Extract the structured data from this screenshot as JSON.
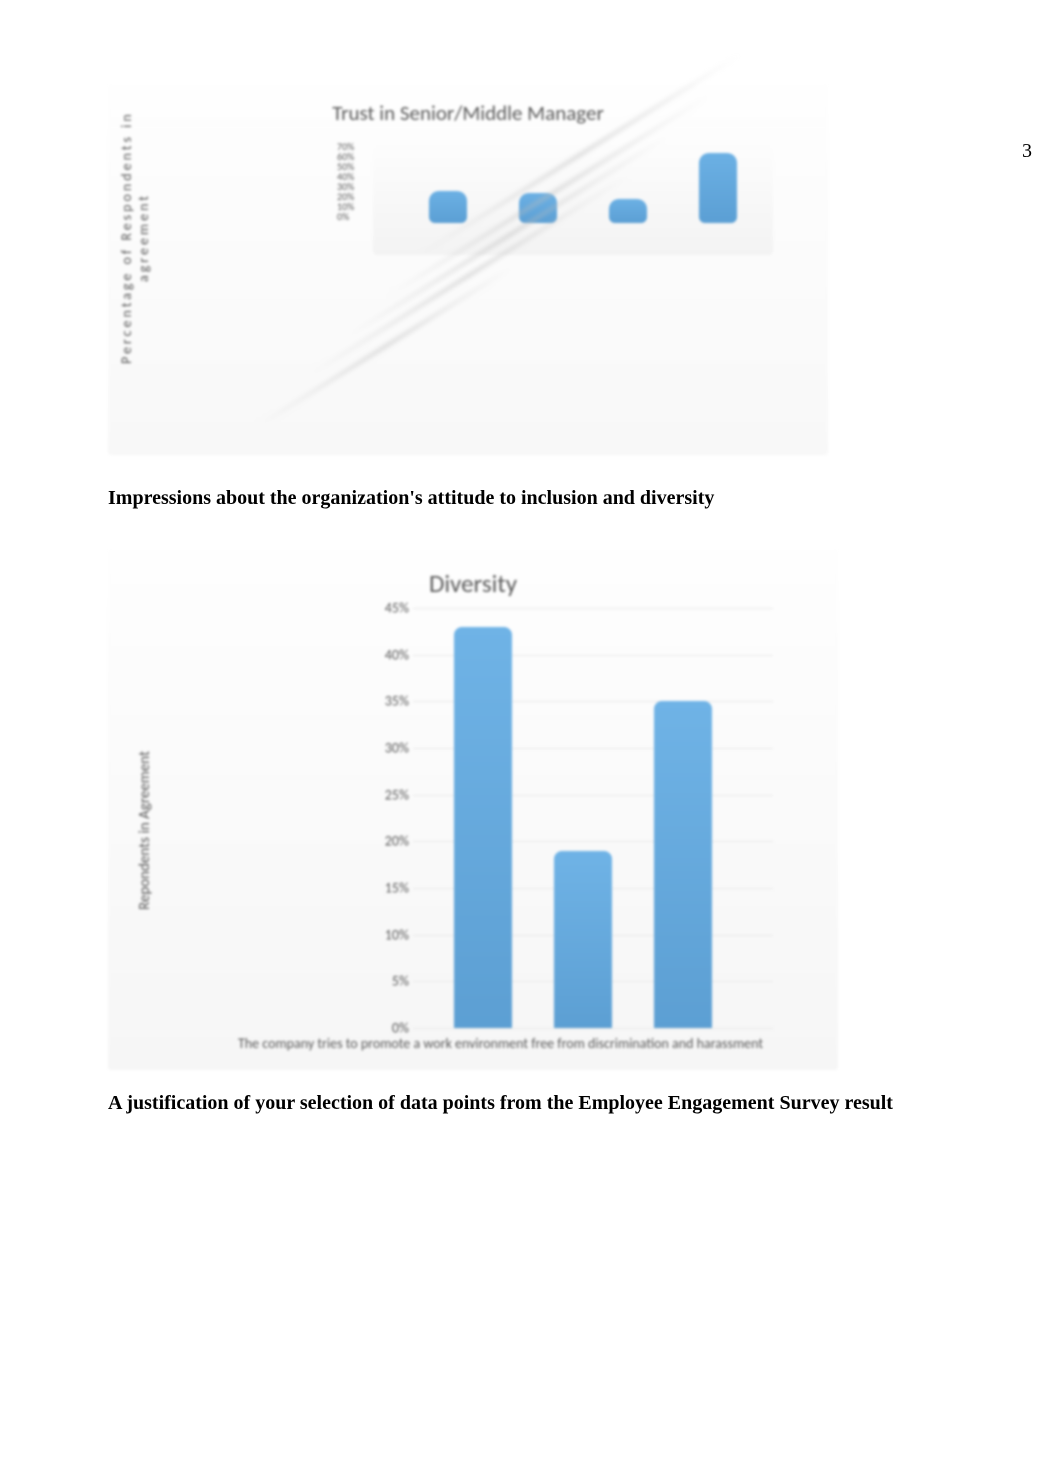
{
  "page_number": "3",
  "chart1": {
    "type": "bar-3d",
    "title": "Trust in Senior/Middle Manager",
    "ylabel": "Percentage of Respondents in agreement",
    "yticks": [
      "70%",
      "60%",
      "50%",
      "40%",
      "30%",
      "20%",
      "10%",
      "0%"
    ],
    "bar_color": "#5b9fd4",
    "background_color": "#fafafa",
    "values": [
      30,
      28,
      22,
      65
    ],
    "ylim_max": 70,
    "title_fontsize": 21,
    "ytick_fontsize": 10,
    "ylabel_fontsize": 14
  },
  "section_heading_1": "Impressions about the organization's attitude to inclusion and diversity",
  "chart2": {
    "type": "bar",
    "title": "Diversity",
    "ylabel": "Repondents in Agreement",
    "yticks": [
      "45%",
      "40%",
      "35%",
      "30%",
      "25%",
      "20%",
      "15%",
      "10%",
      "5%",
      "0%"
    ],
    "ylim_max": 45,
    "ytick_step": 5,
    "bar_color": "#5c9fd3",
    "background_color": "#fafafa",
    "grid_color": "#e8e8e8",
    "values": [
      43,
      19,
      35
    ],
    "xlabel": "The company tries to promote a work environment free from discrimination and harassment",
    "title_fontsize": 25,
    "ylabel_fontsize": 15,
    "ytick_fontsize": 14,
    "xlabel_fontsize": 14
  },
  "section_heading_2": "A justification of your selection of data points from the Employee Engagement Survey result"
}
